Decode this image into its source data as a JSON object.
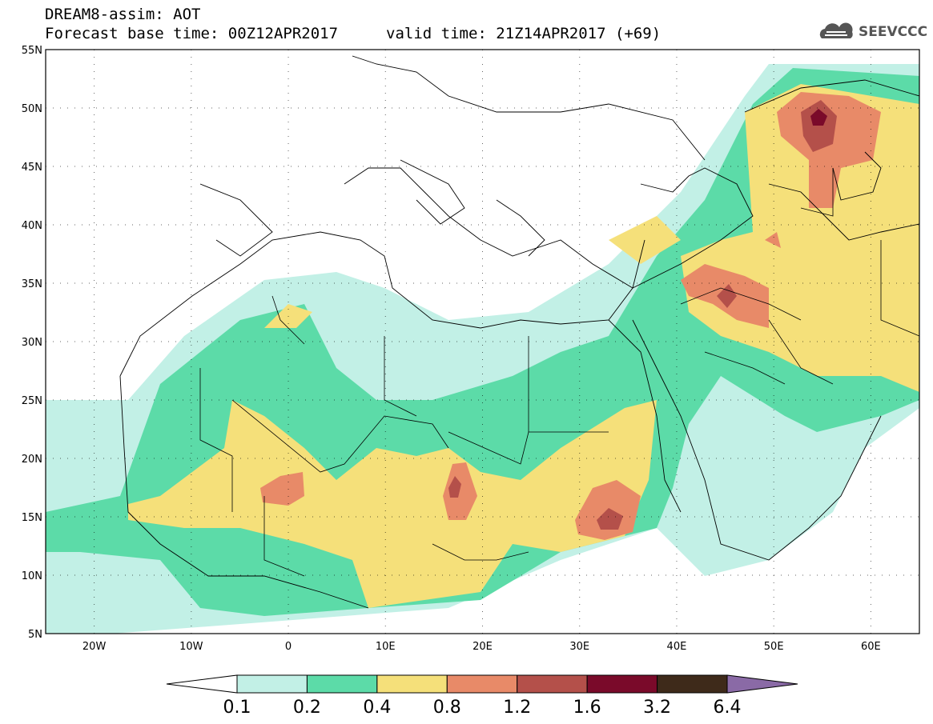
{
  "header": {
    "line1": "DREAM8-assim: AOT",
    "line2": "Forecast base time: 00Z12APR2017",
    "valid": "valid time: 21Z14APR2017 (+69)"
  },
  "logo": {
    "name": "SEEVCCC",
    "icon": "cloud-icon"
  },
  "map": {
    "projection": "lat-lon",
    "lon_range": [
      -25,
      65
    ],
    "lat_range": [
      5,
      55
    ],
    "lat_ticks": [
      "5N",
      "10N",
      "15N",
      "20N",
      "25N",
      "30N",
      "35N",
      "40N",
      "45N",
      "50N",
      "55N"
    ],
    "lon_ticks": [
      "20W",
      "10W",
      "0",
      "10E",
      "20E",
      "30E",
      "40E",
      "50E",
      "60E"
    ],
    "variable": "AOT"
  },
  "colorbar": {
    "labels": [
      "0.1",
      "0.2",
      "0.4",
      "0.8",
      "1.2",
      "1.6",
      "3.2",
      "6.4"
    ],
    "colors": [
      "#ffffff",
      "#c2f0e6",
      "#5cdba8",
      "#f5e07a",
      "#e88a68",
      "#b4504a",
      "#7a0a2a",
      "#3e2a1a",
      "#8a6aa6"
    ]
  }
}
